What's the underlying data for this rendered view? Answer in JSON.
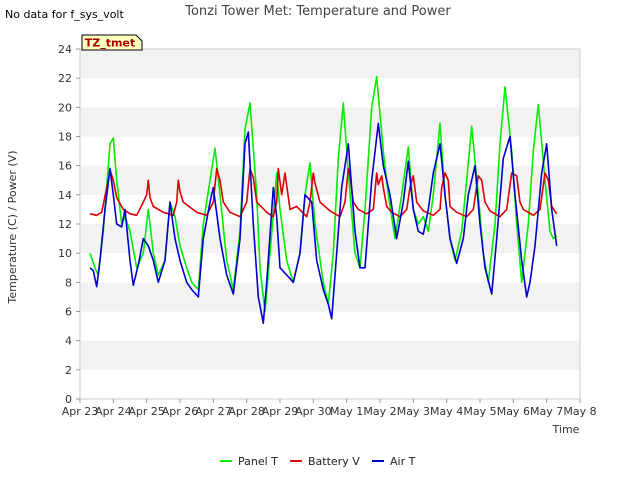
{
  "note": "No data for f_sys_volt",
  "chart_data": {
    "type": "line",
    "title": "Tonzi Tower Met: Temperature and Power",
    "xlabel": "Time",
    "ylabel": "Temperature (C) / Power (V)",
    "ylim": [
      0,
      24
    ],
    "xlim": [
      0,
      15
    ],
    "yticks": [
      0,
      2,
      4,
      6,
      8,
      10,
      12,
      14,
      16,
      18,
      20,
      22,
      24
    ],
    "xtick_labels": [
      "Apr 23",
      "Apr 24",
      "Apr 25",
      "Apr 26",
      "Apr 27",
      "Apr 28",
      "Apr 29",
      "Apr 30",
      "May 1",
      "May 2",
      "May 3",
      "May 4",
      "May 5",
      "May 6",
      "May 7",
      "May 8"
    ],
    "annotation": "TZ_tmet",
    "legend_position": "bottom-center",
    "series": [
      {
        "name": "Panel T",
        "color": "#00ee00",
        "x": [
          0.3,
          0.45,
          0.55,
          0.7,
          0.9,
          1.0,
          1.1,
          1.25,
          1.35,
          1.5,
          1.7,
          1.9,
          2.05,
          2.2,
          2.35,
          2.55,
          2.7,
          2.85,
          3.0,
          3.2,
          3.35,
          3.55,
          3.7,
          3.9,
          4.05,
          4.2,
          4.4,
          4.6,
          4.8,
          4.95,
          5.1,
          5.3,
          5.4,
          5.55,
          5.7,
          5.9,
          6.0,
          6.2,
          6.4,
          6.6,
          6.75,
          6.9,
          7.05,
          7.3,
          7.45,
          7.6,
          7.75,
          7.9,
          8.05,
          8.25,
          8.4,
          8.55,
          8.75,
          8.9,
          9.1,
          9.25,
          9.45,
          9.65,
          9.85,
          10.0,
          10.15,
          10.3,
          10.45,
          10.6,
          10.8,
          10.95,
          11.1,
          11.25,
          11.45,
          11.6,
          11.75,
          11.95,
          12.1,
          12.25,
          12.45,
          12.6,
          12.75,
          12.95,
          13.1,
          13.25,
          13.45,
          13.6,
          13.75,
          13.95,
          14.1,
          14.2,
          14.3
        ],
        "values": [
          10.0,
          9.0,
          8.5,
          11.5,
          17.5,
          17.9,
          15.0,
          12.0,
          12.5,
          11.5,
          9.0,
          10.0,
          13.0,
          10.0,
          8.5,
          9.5,
          13.5,
          12.5,
          10.5,
          9.0,
          8.0,
          7.5,
          12.0,
          15.0,
          17.2,
          14.0,
          9.5,
          7.5,
          11.5,
          18.5,
          20.3,
          14.0,
          9.0,
          6.0,
          10.0,
          15.5,
          13.0,
          9.5,
          8.0,
          10.0,
          14.0,
          16.2,
          12.0,
          8.0,
          6.5,
          10.0,
          16.5,
          20.3,
          15.5,
          10.0,
          9.0,
          13.0,
          20.0,
          22.1,
          17.0,
          14.0,
          11.0,
          14.0,
          17.3,
          13.0,
          12.0,
          12.5,
          11.5,
          14.0,
          18.9,
          14.0,
          11.0,
          9.5,
          11.5,
          15.0,
          18.7,
          14.0,
          10.0,
          8.0,
          12.0,
          17.5,
          21.4,
          17.0,
          12.0,
          8.0,
          12.0,
          17.0,
          20.2,
          15.0,
          11.5,
          11.0,
          11.2
        ]
      },
      {
        "name": "Battery V",
        "color": "#dd0000",
        "x": [
          0.3,
          0.5,
          0.65,
          0.8,
          0.9,
          1.0,
          1.1,
          1.3,
          1.5,
          1.7,
          1.9,
          2.0,
          2.05,
          2.1,
          2.2,
          2.5,
          2.8,
          2.9,
          2.95,
          3.0,
          3.1,
          3.5,
          3.8,
          4.0,
          4.1,
          4.2,
          4.3,
          4.5,
          4.8,
          5.0,
          5.1,
          5.2,
          5.3,
          5.6,
          5.8,
          5.9,
          5.95,
          6.05,
          6.15,
          6.3,
          6.5,
          6.8,
          6.9,
          7.0,
          7.05,
          7.2,
          7.5,
          7.8,
          7.95,
          8.05,
          8.1,
          8.2,
          8.35,
          8.6,
          8.8,
          8.9,
          8.95,
          9.05,
          9.1,
          9.2,
          9.35,
          9.6,
          9.8,
          9.9,
          10.0,
          10.1,
          10.3,
          10.6,
          10.8,
          10.85,
          10.95,
          11.05,
          11.1,
          11.3,
          11.6,
          11.8,
          11.95,
          12.05,
          12.15,
          12.3,
          12.6,
          12.8,
          12.95,
          13.1,
          13.2,
          13.3,
          13.6,
          13.8,
          13.95,
          14.05,
          14.15,
          14.3
        ],
        "values": [
          12.7,
          12.6,
          12.8,
          14.5,
          15.7,
          15.0,
          13.8,
          13.0,
          12.7,
          12.6,
          13.5,
          14.0,
          15.0,
          13.8,
          13.2,
          12.8,
          12.6,
          13.5,
          15.0,
          14.2,
          13.5,
          12.8,
          12.6,
          13.5,
          15.8,
          15.0,
          13.5,
          12.8,
          12.5,
          13.5,
          15.8,
          15.2,
          13.5,
          12.8,
          12.5,
          13.5,
          15.8,
          14.0,
          15.5,
          13.0,
          13.2,
          12.5,
          13.5,
          15.5,
          14.8,
          13.5,
          12.9,
          12.5,
          13.5,
          15.8,
          15.3,
          13.5,
          13.0,
          12.7,
          13.0,
          15.5,
          14.7,
          15.3,
          14.5,
          13.2,
          12.8,
          12.5,
          13.0,
          14.5,
          15.3,
          13.5,
          12.9,
          12.6,
          13.0,
          14.5,
          15.5,
          15.0,
          13.2,
          12.8,
          12.5,
          13.0,
          15.3,
          15.0,
          13.5,
          12.9,
          12.5,
          13.0,
          15.5,
          15.3,
          13.5,
          13.0,
          12.6,
          13.0,
          15.5,
          15.0,
          13.2,
          12.7
        ]
      },
      {
        "name": "Air T",
        "color": "#0000cc",
        "x": [
          0.3,
          0.4,
          0.5,
          0.6,
          0.75,
          0.9,
          1.0,
          1.1,
          1.25,
          1.35,
          1.5,
          1.6,
          1.75,
          1.9,
          2.05,
          2.2,
          2.35,
          2.55,
          2.7,
          2.85,
          3.0,
          3.2,
          3.35,
          3.55,
          3.7,
          3.9,
          4.0,
          4.2,
          4.4,
          4.6,
          4.8,
          4.95,
          5.05,
          5.2,
          5.35,
          5.5,
          5.6,
          5.8,
          5.9,
          6.0,
          6.2,
          6.4,
          6.6,
          6.75,
          6.95,
          7.1,
          7.3,
          7.45,
          7.55,
          7.7,
          7.85,
          8.05,
          8.25,
          8.4,
          8.55,
          8.75,
          8.95,
          9.1,
          9.3,
          9.5,
          9.7,
          9.85,
          10.0,
          10.15,
          10.3,
          10.45,
          10.6,
          10.8,
          10.95,
          11.1,
          11.3,
          11.5,
          11.65,
          11.85,
          12.0,
          12.15,
          12.35,
          12.5,
          12.7,
          12.9,
          13.05,
          13.25,
          13.4,
          13.5,
          13.65,
          13.85,
          14.0,
          14.15,
          14.3
        ],
        "values": [
          9.0,
          8.8,
          7.7,
          9.5,
          13.0,
          15.8,
          14.0,
          12.0,
          11.8,
          13.0,
          9.5,
          7.8,
          9.2,
          11.0,
          10.5,
          9.5,
          8.0,
          9.5,
          13.5,
          11.0,
          9.5,
          8.0,
          7.5,
          7.0,
          11.0,
          13.5,
          14.5,
          11.0,
          8.5,
          7.2,
          11.0,
          17.5,
          18.3,
          12.0,
          7.0,
          5.2,
          8.0,
          14.5,
          12.5,
          9.0,
          8.5,
          8.0,
          10.0,
          14.0,
          13.5,
          9.5,
          7.5,
          6.5,
          5.5,
          10.0,
          14.5,
          17.5,
          11.5,
          9.0,
          9.0,
          15.0,
          18.9,
          16.0,
          14.0,
          11.0,
          13.5,
          16.3,
          13.0,
          11.5,
          11.3,
          13.0,
          15.5,
          17.5,
          14.0,
          11.0,
          9.3,
          11.0,
          14.0,
          16.0,
          12.0,
          9.0,
          7.2,
          11.0,
          16.5,
          18.0,
          14.0,
          9.5,
          7.0,
          8.0,
          10.5,
          15.5,
          17.5,
          13.0,
          10.5
        ]
      }
    ]
  }
}
